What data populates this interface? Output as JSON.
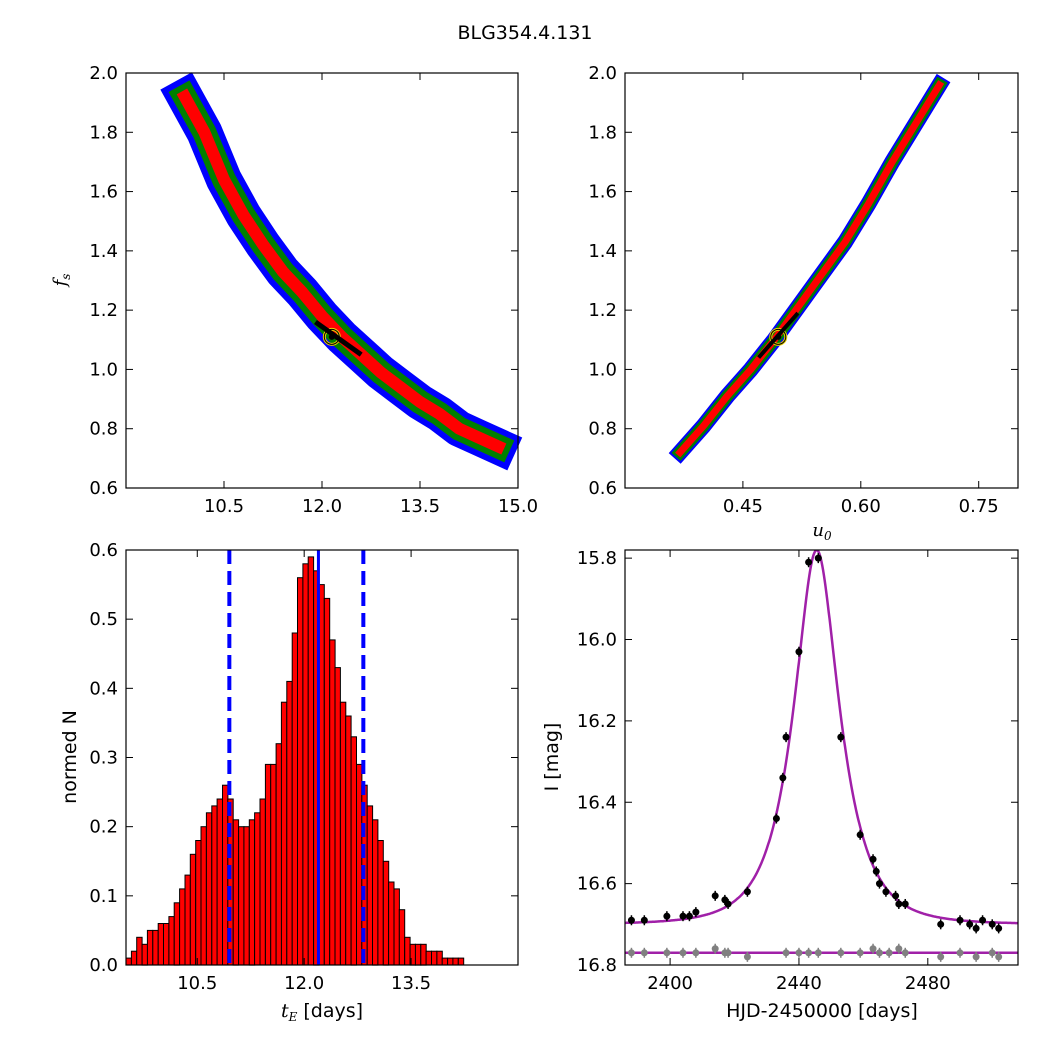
{
  "figure": {
    "suptitle": "BLG354.4.131"
  },
  "colors": {
    "blue": "#0000ff",
    "green": "#007f00",
    "red": "#ff0000",
    "black": "#000000",
    "gold": "#e8d000",
    "magenta": "#a020a8",
    "grey": "#808080"
  },
  "chart_data": [
    {
      "id": "tE_vs_fs",
      "type": "scatter",
      "title": "",
      "xlabel": "",
      "ylabel": "f_s",
      "xlim": [
        9.0,
        15.0
      ],
      "ylim": [
        0.6,
        2.0
      ],
      "xticks": [
        "10.5",
        "12.0",
        "13.5",
        "15.0"
      ],
      "yticks": [
        "0.6",
        "0.8",
        "1.0",
        "1.2",
        "1.4",
        "1.6",
        "1.8",
        "2.0"
      ],
      "confidence_bands": [
        {
          "color": "blue",
          "level": 3
        },
        {
          "color": "green",
          "level": 2
        },
        {
          "color": "red",
          "level": 1
        },
        {
          "color": "black",
          "level": 0
        }
      ],
      "ridge": [
        [
          9.9,
          1.92
        ],
        [
          10.2,
          1.8
        ],
        [
          10.5,
          1.64
        ],
        [
          10.8,
          1.52
        ],
        [
          11.1,
          1.42
        ],
        [
          11.4,
          1.33
        ],
        [
          11.7,
          1.26
        ],
        [
          12.0,
          1.18
        ],
        [
          12.3,
          1.11
        ],
        [
          12.6,
          1.05
        ],
        [
          12.9,
          0.99
        ],
        [
          13.2,
          0.94
        ],
        [
          13.5,
          0.89
        ],
        [
          13.8,
          0.85
        ],
        [
          14.1,
          0.8
        ],
        [
          14.4,
          0.77
        ],
        [
          14.7,
          0.74
        ]
      ],
      "best_fit": {
        "x": 12.15,
        "y": 1.11
      }
    },
    {
      "id": "u0_vs_fs",
      "type": "scatter",
      "title": "",
      "xlabel": "u_0",
      "ylabel": "",
      "xlim": [
        0.3,
        0.8
      ],
      "ylim": [
        0.6,
        2.0
      ],
      "xticks": [
        "0.45",
        "0.60",
        "0.75"
      ],
      "yticks": [
        "0.6",
        "0.8",
        "1.0",
        "1.2",
        "1.4",
        "1.6",
        "1.8",
        "2.0"
      ],
      "ridge": [
        [
          0.37,
          0.72
        ],
        [
          0.4,
          0.81
        ],
        [
          0.43,
          0.91
        ],
        [
          0.46,
          1.0
        ],
        [
          0.49,
          1.1
        ],
        [
          0.52,
          1.21
        ],
        [
          0.55,
          1.32
        ],
        [
          0.58,
          1.43
        ],
        [
          0.61,
          1.56
        ],
        [
          0.64,
          1.7
        ],
        [
          0.67,
          1.83
        ],
        [
          0.7,
          1.96
        ]
      ],
      "best_fit": {
        "x": 0.495,
        "y": 1.11
      }
    },
    {
      "id": "tE_histogram",
      "type": "bar",
      "title": "",
      "xlabel": "t_E [days]",
      "ylabel": "normed N",
      "xlim": [
        9.5,
        15.0
      ],
      "ylim": [
        0.0,
        0.6
      ],
      "xticks": [
        "10.5",
        "12.0",
        "13.5"
      ],
      "yticks": [
        "0.0",
        "0.1",
        "0.2",
        "0.3",
        "0.4",
        "0.5",
        "0.6"
      ],
      "bin_start": 9.5,
      "bin_width": 0.0752,
      "values": [
        0.01,
        0.02,
        0.04,
        0.03,
        0.05,
        0.05,
        0.06,
        0.06,
        0.07,
        0.09,
        0.11,
        0.13,
        0.16,
        0.18,
        0.2,
        0.22,
        0.23,
        0.24,
        0.26,
        0.24,
        0.21,
        0.2,
        0.2,
        0.21,
        0.22,
        0.24,
        0.29,
        0.29,
        0.32,
        0.38,
        0.41,
        0.48,
        0.56,
        0.58,
        0.59,
        0.57,
        0.55,
        0.53,
        0.47,
        0.43,
        0.38,
        0.36,
        0.33,
        0.29,
        0.26,
        0.23,
        0.21,
        0.18,
        0.15,
        0.12,
        0.11,
        0.08,
        0.04,
        0.03,
        0.03,
        0.03,
        0.02,
        0.02,
        0.02,
        0.01,
        0.01,
        0.01,
        0.01,
        0.0
      ],
      "median_line": 12.2,
      "interval_lines": [
        10.95,
        12.83
      ]
    },
    {
      "id": "light_curve",
      "type": "line",
      "title": "",
      "xlabel": "HJD-2450000 [days]",
      "ylabel": "I [mag]",
      "xlim": [
        2386,
        2508
      ],
      "ylim": [
        16.8,
        15.78
      ],
      "xticks": [
        "2400",
        "2440",
        "2480"
      ],
      "yticks": [
        "15.8",
        "16.0",
        "16.2",
        "16.4",
        "16.6",
        "16.8"
      ],
      "model": {
        "t0": 2445.5,
        "tE": 12.15,
        "u0": 0.495,
        "fs": 1.11,
        "baseline": 16.7
      },
      "residual_baseline": 16.77,
      "points": [
        [
          2388,
          16.69
        ],
        [
          2392,
          16.69
        ],
        [
          2399,
          16.68
        ],
        [
          2404,
          16.68
        ],
        [
          2406,
          16.68
        ],
        [
          2408,
          16.67
        ],
        [
          2414,
          16.63
        ],
        [
          2417,
          16.64
        ],
        [
          2418,
          16.65
        ],
        [
          2424,
          16.62
        ],
        [
          2433,
          16.44
        ],
        [
          2435,
          16.34
        ],
        [
          2436,
          16.24
        ],
        [
          2440,
          16.03
        ],
        [
          2443,
          15.81
        ],
        [
          2446,
          15.8
        ],
        [
          2453,
          16.24
        ],
        [
          2459,
          16.48
        ],
        [
          2463,
          16.54
        ],
        [
          2464,
          16.57
        ],
        [
          2465,
          16.6
        ],
        [
          2467,
          16.62
        ],
        [
          2470,
          16.63
        ],
        [
          2471,
          16.65
        ],
        [
          2473,
          16.65
        ],
        [
          2484,
          16.7
        ],
        [
          2490,
          16.69
        ],
        [
          2493,
          16.7
        ],
        [
          2495,
          16.71
        ],
        [
          2497,
          16.69
        ],
        [
          2500,
          16.7
        ],
        [
          2502,
          16.71
        ]
      ],
      "residuals": [
        [
          2388,
          16.77
        ],
        [
          2392,
          16.77
        ],
        [
          2399,
          16.77
        ],
        [
          2404,
          16.77
        ],
        [
          2408,
          16.77
        ],
        [
          2414,
          16.76
        ],
        [
          2417,
          16.77
        ],
        [
          2418,
          16.77
        ],
        [
          2424,
          16.78
        ],
        [
          2436,
          16.77
        ],
        [
          2440,
          16.77
        ],
        [
          2443,
          16.77
        ],
        [
          2446,
          16.77
        ],
        [
          2453,
          16.77
        ],
        [
          2459,
          16.77
        ],
        [
          2463,
          16.76
        ],
        [
          2465,
          16.77
        ],
        [
          2468,
          16.77
        ],
        [
          2471,
          16.76
        ],
        [
          2473,
          16.77
        ],
        [
          2484,
          16.78
        ],
        [
          2490,
          16.77
        ],
        [
          2495,
          16.78
        ],
        [
          2500,
          16.77
        ],
        [
          2502,
          16.78
        ]
      ]
    }
  ]
}
